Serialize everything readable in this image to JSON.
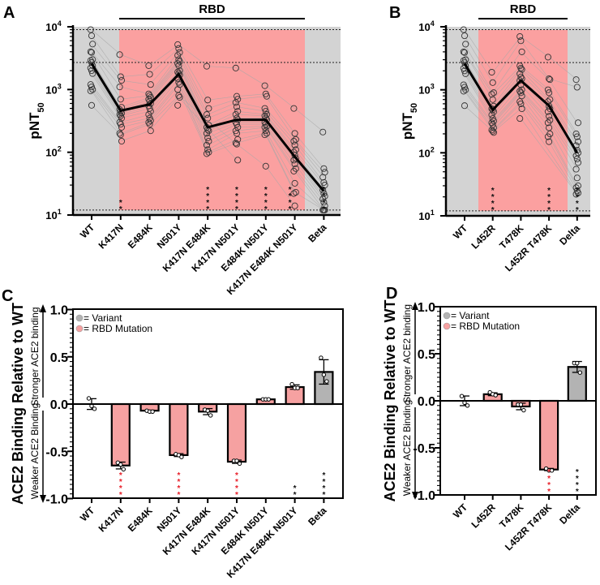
{
  "chart_data": [
    {
      "panel": "A",
      "type": "scatter",
      "scale": "log",
      "bracket_label": "RBD",
      "ylabel": "pNT",
      "ylabel_sub": "50",
      "ylim": [
        10,
        10000
      ],
      "tick_labels": [
        {
          "base": "10",
          "exp": "1"
        },
        {
          "base": "10",
          "exp": "2"
        },
        {
          "base": "10",
          "exp": "3"
        },
        {
          "base": "10",
          "exp": "4"
        }
      ],
      "reference_lines": [
        9000,
        2700,
        12
      ],
      "categories": [
        "WT",
        "K417N",
        "E484K",
        "N501Y",
        "K417N E484K",
        "K417N N501Y",
        "E484K N501Y",
        "K417N E484K N501Y",
        "Beta"
      ],
      "region": [
        "gray",
        "rbd",
        "rbd",
        "rbd",
        "rbd",
        "rbd",
        "rbd",
        "rbd",
        "gray"
      ],
      "geomean": [
        2600,
        460,
        580,
        1750,
        250,
        330,
        330,
        85,
        24
      ],
      "points": [
        [
          9000,
          7200,
          5300,
          4000,
          3900,
          3000,
          2900,
          2700,
          2400,
          2200,
          2000,
          1800,
          1200,
          1100,
          1000,
          950,
          560
        ],
        [
          3600,
          1600,
          1400,
          1100,
          700,
          520,
          480,
          450,
          420,
          400,
          380,
          350,
          300,
          280,
          250,
          200,
          190,
          150
        ],
        [
          2400,
          1750,
          1200,
          850,
          800,
          750,
          700,
          650,
          600,
          550,
          500,
          450,
          400,
          350,
          320,
          300,
          280,
          220
        ],
        [
          5200,
          4500,
          3900,
          3500,
          3000,
          2800,
          2600,
          2400,
          2000,
          1900,
          1800,
          1700,
          1500,
          1300,
          1200,
          1000,
          800,
          750,
          560
        ],
        [
          2350,
          680,
          500,
          400,
          350,
          270,
          250,
          230,
          220,
          200,
          170,
          150,
          130,
          110,
          100,
          95
        ],
        [
          2200,
          780,
          700,
          620,
          530,
          450,
          400,
          350,
          330,
          300,
          280,
          250,
          220,
          200,
          160,
          140,
          135,
          75
        ],
        [
          1150,
          850,
          780,
          500,
          450,
          400,
          380,
          350,
          330,
          300,
          280,
          260,
          250,
          220,
          200,
          190,
          60
        ],
        [
          500,
          200,
          160,
          150,
          130,
          110,
          100,
          90,
          80,
          75,
          65,
          55,
          50,
          32,
          23,
          22,
          14
        ],
        [
          210,
          55,
          48,
          40,
          33,
          30,
          25,
          22,
          20,
          18,
          16,
          14,
          12,
          12,
          12
        ]
      ],
      "significance": [
        "",
        "**",
        "",
        "",
        "****",
        "****",
        "****",
        "****",
        "****"
      ]
    },
    {
      "panel": "B",
      "type": "scatter",
      "scale": "log",
      "bracket_label": "RBD",
      "ylabel": "pNT",
      "ylabel_sub": "50",
      "ylim": [
        10,
        10000
      ],
      "tick_labels": [
        {
          "base": "10",
          "exp": "1"
        },
        {
          "base": "10",
          "exp": "2"
        },
        {
          "base": "10",
          "exp": "3"
        },
        {
          "base": "10",
          "exp": "4"
        }
      ],
      "reference_lines": [
        9000,
        2700,
        12
      ],
      "categories": [
        "WT",
        "L452R",
        "T478K",
        "L452R T478K",
        "Delta"
      ],
      "region": [
        "gray",
        "rbd",
        "rbd",
        "rbd",
        "gray"
      ],
      "geomean": [
        2600,
        480,
        1400,
        560,
        100
      ],
      "points": [
        [
          9000,
          7200,
          5300,
          4000,
          3900,
          3000,
          2900,
          2700,
          2400,
          2200,
          2000,
          1800,
          1200,
          1100,
          1000,
          950,
          560
        ],
        [
          1900,
          1300,
          900,
          850,
          700,
          550,
          500,
          480,
          450,
          400,
          350,
          320,
          300,
          280,
          250,
          230,
          220,
          210
        ],
        [
          7000,
          6000,
          4000,
          2400,
          2200,
          2100,
          1800,
          1600,
          1500,
          1400,
          1200,
          1000,
          950,
          900,
          800,
          650,
          600,
          500,
          350
        ],
        [
          3300,
          1500,
          1450,
          1000,
          900,
          700,
          650,
          550,
          500,
          450,
          380,
          330,
          300,
          250,
          200,
          180,
          150
        ],
        [
          1450,
          1100,
          300,
          200,
          180,
          150,
          130,
          110,
          100,
          90,
          80,
          70,
          55,
          40,
          30,
          28,
          25,
          23,
          22
        ]
      ],
      "significance": [
        "",
        "****",
        "",
        "****",
        "****"
      ]
    },
    {
      "panel": "C",
      "type": "bar",
      "ylabel": "ACE2 Binding Relative to WT",
      "ylabel_upper": "Stronger ACE2 binding",
      "ylabel_lower": "Weaker ACE2 Binding",
      "ylim": [
        -1.0,
        1.0
      ],
      "ytick_values": [
        -1.0,
        -0.5,
        0.0,
        0.5,
        1.0
      ],
      "ytick_labels": [
        "-1.0",
        "-0.5",
        "0.0",
        "0.5",
        "1.0"
      ],
      "legend": [
        {
          "label": "= Variant",
          "color": "#b3b3b3"
        },
        {
          "label": "= RBD Mutation",
          "color": "#f6a1a1"
        }
      ],
      "categories": [
        "WT",
        "K417N",
        "E484K",
        "N501Y",
        "K417N E484K",
        "K417N N501Y",
        "E484K N501Y",
        "K417N E484K N501Y",
        "Beta"
      ],
      "kind": [
        "wt",
        "rbd",
        "rbd",
        "rbd",
        "rbd",
        "rbd",
        "rbd",
        "rbd",
        "variant"
      ],
      "values": [
        0.0,
        -0.65,
        -0.07,
        -0.54,
        -0.08,
        -0.61,
        0.05,
        0.18,
        0.34
      ],
      "points": [
        [
          0.06,
          -0.02,
          -0.05
        ],
        [
          -0.62,
          -0.64,
          -0.69
        ],
        [
          -0.07,
          -0.08,
          -0.08
        ],
        [
          -0.53,
          -0.54,
          -0.56
        ],
        [
          -0.06,
          -0.07,
          -0.12
        ],
        [
          -0.6,
          -0.6,
          -0.63
        ],
        [
          0.05,
          0.05,
          0.05
        ],
        [
          0.21,
          0.17,
          0.17
        ],
        [
          0.49,
          0.31,
          0.24
        ]
      ],
      "significance": [
        "",
        "****",
        "",
        "****",
        "",
        "****",
        "",
        "**",
        "****"
      ],
      "significance_color": [
        "",
        "#e8202a",
        "",
        "#e8202a",
        "",
        "#e8202a",
        "",
        "#111111",
        "#111111"
      ]
    },
    {
      "panel": "D",
      "type": "bar",
      "ylabel": "ACE2 Binding Relative to WT",
      "ylabel_upper": "Stronger ACE2 binding",
      "ylabel_lower": "Weaker ACE2 Binding",
      "ylim": [
        -1.0,
        1.0
      ],
      "ytick_values": [
        -1.0,
        -0.5,
        0.0,
        0.5,
        1.0
      ],
      "ytick_labels": [
        "-1.0",
        "-0.5",
        "0.0",
        "0.5",
        "1.0"
      ],
      "legend": [
        {
          "label": "= Variant",
          "color": "#b3b3b3"
        },
        {
          "label": "= RBD Mutation",
          "color": "#f6a1a1"
        }
      ],
      "categories": [
        "WT",
        "L452R",
        "T478K",
        "L452R T478K",
        "Delta"
      ],
      "kind": [
        "wt",
        "rbd",
        "rbd",
        "rbd",
        "variant"
      ],
      "values": [
        0.0,
        0.07,
        -0.06,
        -0.73,
        0.36
      ],
      "points": [
        [
          0.05,
          -0.02,
          -0.05
        ],
        [
          0.09,
          0.07,
          0.06
        ],
        [
          -0.04,
          -0.04,
          -0.1
        ],
        [
          -0.72,
          -0.74,
          -0.74
        ],
        [
          0.4,
          0.4,
          0.3
        ]
      ],
      "significance": [
        "",
        "",
        "",
        "****",
        "****"
      ],
      "significance_color": [
        "",
        "",
        "",
        "#e8202a",
        "#111111"
      ]
    }
  ],
  "colors": {
    "rbd_region": "#fba0a0",
    "gray_region": "#d3d3d3",
    "rbd_bar": "#f6a1a1",
    "variant_bar": "#b3b3b3"
  }
}
